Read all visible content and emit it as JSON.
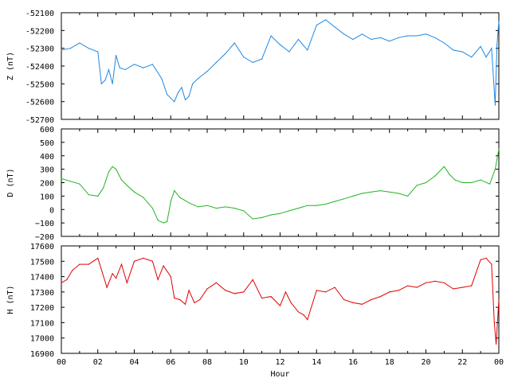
{
  "chart_data": [
    {
      "type": "line",
      "ylabel": "Z (nT)",
      "xlabel": "",
      "color": "#1e88e5",
      "xlim": [
        0,
        24
      ],
      "ylim": [
        -52700,
        -52100
      ],
      "yticks": [
        -52100,
        -52200,
        -52300,
        -52400,
        -52500,
        -52600,
        -52700
      ],
      "xtick_labels": [
        "00",
        "02",
        "04",
        "06",
        "08",
        "10",
        "12",
        "14",
        "16",
        "18",
        "20",
        "22",
        "00"
      ],
      "series": [
        {
          "x": [
            0,
            0.5,
            1,
            1.5,
            2,
            2.2,
            2.4,
            2.6,
            2.8,
            3,
            3.2,
            3.5,
            4,
            4.5,
            5,
            5.5,
            5.8,
            6,
            6.2,
            6.4,
            6.6,
            6.8,
            7,
            7.2,
            7.5,
            8,
            8.5,
            9,
            9.5,
            10,
            10.5,
            11,
            11.5,
            12,
            12.5,
            13,
            13.5,
            14,
            14.5,
            15,
            15.5,
            16,
            16.5,
            17,
            17.5,
            18,
            18.5,
            19,
            19.5,
            20,
            20.5,
            21,
            21.5,
            22,
            22.5,
            23,
            23.3,
            23.6,
            23.8,
            23.9,
            24
          ],
          "values": [
            -52310,
            -52300,
            -52270,
            -52300,
            -52320,
            -52500,
            -52480,
            -52420,
            -52500,
            -52340,
            -52410,
            -52420,
            -52390,
            -52410,
            -52390,
            -52470,
            -52560,
            -52580,
            -52600,
            -52550,
            -52520,
            -52590,
            -52570,
            -52500,
            -52470,
            -52430,
            -52380,
            -52330,
            -52270,
            -52350,
            -52380,
            -52360,
            -52230,
            -52280,
            -52320,
            -52250,
            -52310,
            -52170,
            -52140,
            -52180,
            -52220,
            -52250,
            -52220,
            -52250,
            -52240,
            -52260,
            -52240,
            -52230,
            -52230,
            -52220,
            -52240,
            -52270,
            -52310,
            -52320,
            -52350,
            -52290,
            -52350,
            -52300,
            -52620,
            -52280,
            -52150
          ]
        }
      ]
    },
    {
      "type": "line",
      "ylabel": "D (nT)",
      "xlabel": "",
      "color": "#22b422",
      "xlim": [
        0,
        24
      ],
      "ylim": [
        -200,
        600
      ],
      "yticks": [
        600,
        500,
        400,
        300,
        200,
        100,
        0,
        -100,
        -200
      ],
      "xtick_labels": [
        "00",
        "02",
        "04",
        "06",
        "08",
        "10",
        "12",
        "14",
        "16",
        "18",
        "20",
        "22",
        "00"
      ],
      "series": [
        {
          "x": [
            0,
            0.5,
            1,
            1.5,
            2,
            2.3,
            2.6,
            2.8,
            3,
            3.3,
            3.6,
            4,
            4.5,
            5,
            5.3,
            5.6,
            5.8,
            6,
            6.2,
            6.5,
            7,
            7.5,
            8,
            8.5,
            9,
            9.5,
            10,
            10.5,
            11,
            11.5,
            12,
            12.5,
            13,
            13.5,
            14,
            14.5,
            15,
            15.5,
            16,
            16.5,
            17,
            17.5,
            18,
            18.5,
            19,
            19.5,
            20,
            20.5,
            21,
            21.3,
            21.6,
            22,
            22.5,
            23,
            23.5,
            23.8,
            24
          ],
          "values": [
            230,
            210,
            190,
            110,
            100,
            160,
            280,
            320,
            300,
            220,
            180,
            130,
            90,
            10,
            -80,
            -100,
            -90,
            60,
            140,
            90,
            50,
            20,
            30,
            10,
            20,
            10,
            -10,
            -70,
            -60,
            -40,
            -30,
            -10,
            10,
            30,
            30,
            40,
            60,
            80,
            100,
            120,
            130,
            140,
            130,
            120,
            100,
            180,
            200,
            250,
            320,
            260,
            220,
            200,
            200,
            220,
            190,
            300,
            450
          ]
        }
      ]
    },
    {
      "type": "line",
      "ylabel": "H (nT)",
      "xlabel": "Hour",
      "color": "#e00000",
      "xlim": [
        0,
        24
      ],
      "ylim": [
        16900,
        17600
      ],
      "yticks": [
        17600,
        17500,
        17400,
        17300,
        17200,
        17100,
        17000,
        16900
      ],
      "xtick_labels": [
        "00",
        "02",
        "04",
        "06",
        "08",
        "10",
        "12",
        "14",
        "16",
        "18",
        "20",
        "22",
        "00"
      ],
      "series": [
        {
          "x": [
            0,
            0.3,
            0.6,
            1,
            1.5,
            2,
            2.5,
            2.8,
            3,
            3.3,
            3.6,
            4,
            4.5,
            5,
            5.3,
            5.6,
            6,
            6.2,
            6.5,
            6.8,
            7,
            7.3,
            7.6,
            8,
            8.5,
            9,
            9.5,
            10,
            10.5,
            11,
            11.5,
            12,
            12.3,
            12.6,
            13,
            13.3,
            13.5,
            14,
            14.5,
            15,
            15.5,
            16,
            16.5,
            17,
            17.5,
            18,
            18.5,
            19,
            19.5,
            20,
            20.5,
            21,
            21.5,
            22,
            22.5,
            23,
            23.3,
            23.6,
            23.75,
            23.85,
            24
          ],
          "values": [
            17360,
            17380,
            17440,
            17480,
            17480,
            17520,
            17330,
            17420,
            17390,
            17480,
            17360,
            17500,
            17520,
            17500,
            17380,
            17470,
            17400,
            17260,
            17250,
            17220,
            17310,
            17230,
            17250,
            17320,
            17360,
            17310,
            17290,
            17300,
            17380,
            17260,
            17270,
            17210,
            17300,
            17230,
            17170,
            17150,
            17120,
            17310,
            17300,
            17330,
            17250,
            17230,
            17220,
            17250,
            17270,
            17300,
            17310,
            17340,
            17330,
            17360,
            17370,
            17360,
            17320,
            17330,
            17340,
            17510,
            17520,
            17480,
            17100,
            16960,
            17250
          ]
        }
      ]
    }
  ]
}
